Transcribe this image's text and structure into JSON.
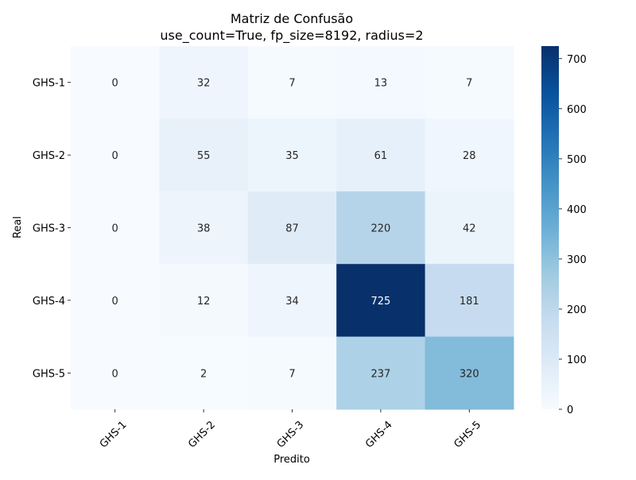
{
  "chart_data": {
    "type": "heatmap",
    "title": "Matriz de Confusão",
    "subtitle": "use_count=True, fp_size=8192, radius=2",
    "xlabel": "Predito",
    "ylabel": "Real",
    "x_categories": [
      "GHS-1",
      "GHS-2",
      "GHS-3",
      "GHS-4",
      "GHS-5"
    ],
    "y_categories": [
      "GHS-1",
      "GHS-2",
      "GHS-3",
      "GHS-4",
      "GHS-5"
    ],
    "values": [
      [
        0,
        32,
        7,
        13,
        7
      ],
      [
        0,
        55,
        35,
        61,
        28
      ],
      [
        0,
        38,
        87,
        220,
        42
      ],
      [
        0,
        12,
        34,
        725,
        181
      ],
      [
        0,
        2,
        7,
        237,
        320
      ]
    ],
    "colormap": "Blues",
    "vmin": 0,
    "vmax": 725,
    "colorbar_ticks": [
      0,
      100,
      200,
      300,
      400,
      500,
      600,
      700
    ]
  }
}
